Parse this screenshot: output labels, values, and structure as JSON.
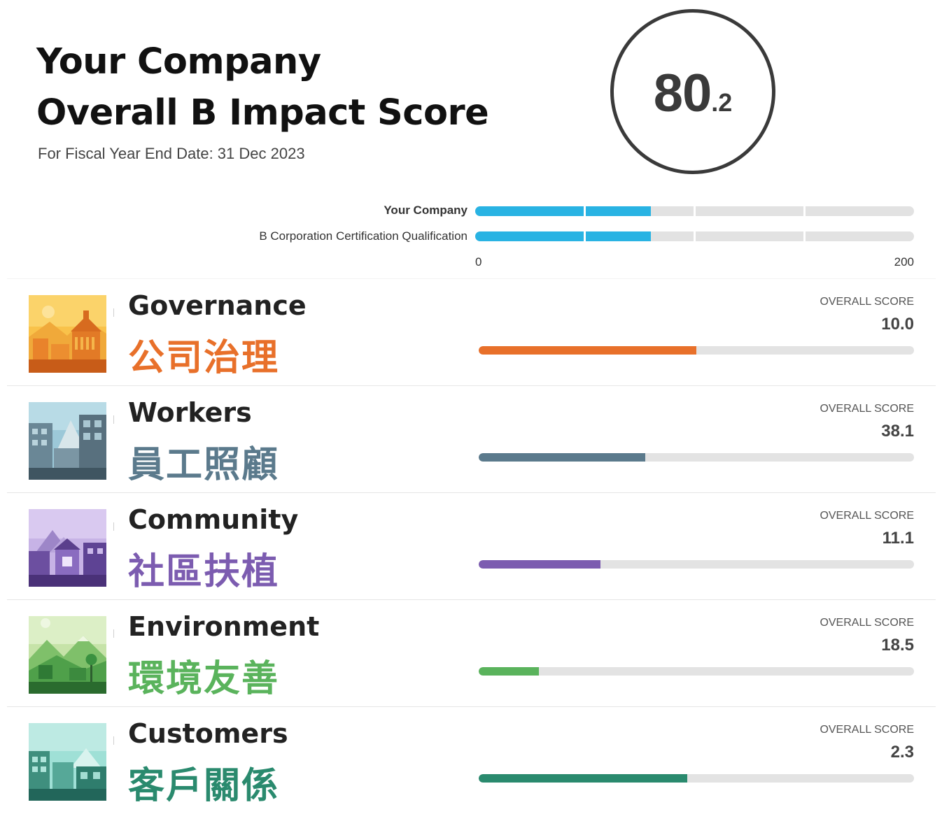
{
  "header": {
    "title_line1": "Your Company",
    "title_line2": "Overall B Impact Score",
    "fiscal_year": "For Fiscal Year End Date: 31 Dec 2023"
  },
  "overall_score": {
    "integer": "80",
    "decimal": ".2",
    "value": 80.2
  },
  "comparison": {
    "bars": [
      {
        "label": "Your Company",
        "value": 80.2,
        "color": "#29b3e3"
      },
      {
        "label": "B Corporation Certification Qualification",
        "value": 80,
        "color": "#29b3e3"
      }
    ],
    "axis_min": "0",
    "axis_max": "200",
    "scale_max": 200
  },
  "impact_areas": [
    {
      "name_en": "Governance",
      "name_zh": "公司治理",
      "score_label": "OVERALL SCORE",
      "score": "10.0",
      "fill_fraction": 0.5,
      "color": "#e8702a",
      "thumb_theme": "governance"
    },
    {
      "name_en": "Workers",
      "name_zh": "員工照顧",
      "score_label": "OVERALL SCORE",
      "score": "38.1",
      "fill_fraction": 0.382,
      "color": "#5b7a8c",
      "thumb_theme": "workers"
    },
    {
      "name_en": "Community",
      "name_zh": "社區扶植",
      "score_label": "OVERALL SCORE",
      "score": "11.1",
      "fill_fraction": 0.279,
      "color": "#7c5cb0",
      "thumb_theme": "community"
    },
    {
      "name_en": "Environment",
      "name_zh": "環境友善",
      "score_label": "OVERALL SCORE",
      "score": "18.5",
      "fill_fraction": 0.138,
      "color": "#5ab35c",
      "thumb_theme": "environment"
    },
    {
      "name_en": "Customers",
      "name_zh": "客戶關係",
      "score_label": "OVERALL SCORE",
      "score": "2.3",
      "fill_fraction": 0.479,
      "color": "#2a8a6e",
      "thumb_theme": "customers"
    }
  ],
  "chart_data": [
    {
      "type": "bar",
      "categories": [
        "Your Company",
        "B Corporation Certification Qualification"
      ],
      "values": [
        80.2,
        80
      ],
      "title": "",
      "xlabel": "",
      "ylabel": "",
      "xlim": [
        0,
        200
      ]
    },
    {
      "type": "bar",
      "categories": [
        "Governance",
        "Workers",
        "Community",
        "Environment",
        "Customers"
      ],
      "values": [
        10.0,
        38.1,
        11.1,
        18.5,
        2.3
      ],
      "title": "",
      "xlabel": "",
      "ylabel": ""
    }
  ]
}
